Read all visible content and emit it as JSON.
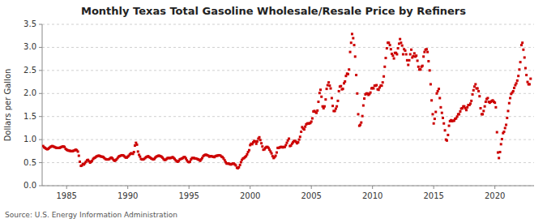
{
  "chart_data": {
    "type": "scatter",
    "title": "Monthly Texas Total Gasoline Wholesale/Resale Price by Refiners",
    "y_label": "Dollars per Gallon",
    "annotation": "Source: U.S. Energy Information Administration",
    "color": "#cc0000",
    "marker": "square",
    "grid": "y",
    "xlim": [
      1983.0,
      2023.2
    ],
    "ylim": [
      0.0,
      3.5
    ],
    "xticks": [
      1985,
      1990,
      1995,
      2000,
      2005,
      2010,
      2015,
      2020
    ],
    "yticks": [
      {
        "value": 0.0,
        "label": "0.0"
      },
      0.5,
      {
        "value": 1.0,
        "label": "1.0"
      },
      1.5,
      {
        "value": 2.0,
        "label": "2.0"
      },
      2.5,
      {
        "value": 3.0,
        "label": "3.0"
      },
      3.5
    ],
    "x": [
      1983.08,
      1983.17,
      1983.25,
      1983.33,
      1983.42,
      1983.5,
      1983.58,
      1983.67,
      1983.75,
      1983.83,
      1983.92,
      1984.0,
      1984.08,
      1984.17,
      1984.25,
      1984.33,
      1984.42,
      1984.5,
      1984.58,
      1984.67,
      1984.75,
      1984.83,
      1984.92,
      1985.0,
      1985.08,
      1985.17,
      1985.25,
      1985.33,
      1985.42,
      1985.5,
      1985.58,
      1985.67,
      1985.75,
      1985.83,
      1985.92,
      1986.0,
      1986.08,
      1986.17,
      1986.25,
      1986.33,
      1986.42,
      1986.5,
      1986.58,
      1986.67,
      1986.75,
      1986.83,
      1986.92,
      1987.0,
      1987.08,
      1987.17,
      1987.25,
      1987.33,
      1987.42,
      1987.5,
      1987.58,
      1987.67,
      1987.75,
      1987.83,
      1987.92,
      1988.0,
      1988.08,
      1988.17,
      1988.25,
      1988.33,
      1988.42,
      1988.5,
      1988.58,
      1988.67,
      1988.75,
      1988.83,
      1988.92,
      1989.0,
      1989.08,
      1989.17,
      1989.25,
      1989.33,
      1989.42,
      1989.5,
      1989.58,
      1989.67,
      1989.75,
      1989.83,
      1989.92,
      1990.0,
      1990.08,
      1990.17,
      1990.25,
      1990.33,
      1990.42,
      1990.5,
      1990.58,
      1990.67,
      1990.75,
      1990.83,
      1990.92,
      1991.0,
      1991.08,
      1991.17,
      1991.25,
      1991.33,
      1991.42,
      1991.5,
      1991.58,
      1991.67,
      1991.75,
      1991.83,
      1991.92,
      1992.0,
      1992.08,
      1992.17,
      1992.25,
      1992.33,
      1992.42,
      1992.5,
      1992.58,
      1992.67,
      1992.75,
      1992.83,
      1992.92,
      1993.0,
      1993.08,
      1993.17,
      1993.25,
      1993.33,
      1993.42,
      1993.5,
      1993.58,
      1993.67,
      1993.75,
      1993.83,
      1993.92,
      1994.0,
      1994.08,
      1994.17,
      1994.25,
      1994.33,
      1994.42,
      1994.5,
      1994.58,
      1994.67,
      1994.75,
      1994.83,
      1994.92,
      1995.0,
      1995.08,
      1995.17,
      1995.25,
      1995.33,
      1995.42,
      1995.5,
      1995.58,
      1995.67,
      1995.75,
      1995.83,
      1995.92,
      1996.0,
      1996.08,
      1996.17,
      1996.25,
      1996.33,
      1996.42,
      1996.5,
      1996.58,
      1996.67,
      1996.75,
      1996.83,
      1996.92,
      1997.0,
      1997.08,
      1997.17,
      1997.25,
      1997.33,
      1997.42,
      1997.5,
      1997.58,
      1997.67,
      1997.75,
      1997.83,
      1997.92,
      1998.0,
      1998.08,
      1998.17,
      1998.25,
      1998.33,
      1998.42,
      1998.5,
      1998.58,
      1998.67,
      1998.75,
      1998.83,
      1998.92,
      1999.0,
      1999.08,
      1999.17,
      1999.25,
      1999.33,
      1999.42,
      1999.5,
      1999.58,
      1999.67,
      1999.75,
      1999.83,
      1999.92,
      2000.0,
      2000.08,
      2000.17,
      2000.25,
      2000.33,
      2000.42,
      2000.5,
      2000.58,
      2000.67,
      2000.75,
      2000.83,
      2000.92,
      2001.0,
      2001.08,
      2001.17,
      2001.25,
      2001.33,
      2001.42,
      2001.5,
      2001.58,
      2001.67,
      2001.75,
      2001.83,
      2001.92,
      2002.0,
      2002.08,
      2002.17,
      2002.25,
      2002.33,
      2002.42,
      2002.5,
      2002.58,
      2002.67,
      2002.75,
      2002.83,
      2002.92,
      2003.0,
      2003.08,
      2003.17,
      2003.25,
      2003.33,
      2003.42,
      2003.5,
      2003.58,
      2003.67,
      2003.75,
      2003.83,
      2003.92,
      2004.0,
      2004.08,
      2004.17,
      2004.25,
      2004.33,
      2004.42,
      2004.5,
      2004.58,
      2004.67,
      2004.75,
      2004.83,
      2004.92,
      2005.0,
      2005.08,
      2005.17,
      2005.25,
      2005.33,
      2005.42,
      2005.5,
      2005.58,
      2005.67,
      2005.75,
      2005.83,
      2005.92,
      2006.0,
      2006.08,
      2006.17,
      2006.25,
      2006.33,
      2006.42,
      2006.5,
      2006.58,
      2006.67,
      2006.75,
      2006.83,
      2006.92,
      2007.0,
      2007.08,
      2007.17,
      2007.25,
      2007.33,
      2007.42,
      2007.5,
      2007.58,
      2007.67,
      2007.75,
      2007.83,
      2007.92,
      2008.0,
      2008.08,
      2008.17,
      2008.25,
      2008.33,
      2008.42,
      2008.5,
      2008.58,
      2008.67,
      2008.75,
      2008.83,
      2008.92,
      2009.0,
      2009.08,
      2009.17,
      2009.25,
      2009.33,
      2009.42,
      2009.5,
      2009.58,
      2009.67,
      2009.75,
      2009.83,
      2009.92,
      2010.0,
      2010.08,
      2010.17,
      2010.25,
      2010.33,
      2010.42,
      2010.5,
      2010.58,
      2010.67,
      2010.75,
      2010.83,
      2010.92,
      2011.0,
      2011.08,
      2011.17,
      2011.25,
      2011.33,
      2011.42,
      2011.5,
      2011.58,
      2011.67,
      2011.75,
      2011.83,
      2011.92,
      2012.0,
      2012.08,
      2012.17,
      2012.25,
      2012.33,
      2012.42,
      2012.5,
      2012.58,
      2012.67,
      2012.75,
      2012.83,
      2012.92,
      2013.0,
      2013.08,
      2013.17,
      2013.25,
      2013.33,
      2013.42,
      2013.5,
      2013.58,
      2013.67,
      2013.75,
      2013.83,
      2013.92,
      2014.0,
      2014.08,
      2014.17,
      2014.25,
      2014.33,
      2014.42,
      2014.5,
      2014.58,
      2014.67,
      2014.75,
      2014.83,
      2014.92,
      2015.0,
      2015.08,
      2015.17,
      2015.25,
      2015.33,
      2015.42,
      2015.5,
      2015.58,
      2015.67,
      2015.75,
      2015.83,
      2015.92,
      2016.0,
      2016.08,
      2016.17,
      2016.25,
      2016.33,
      2016.42,
      2016.5,
      2016.58,
      2016.67,
      2016.75,
      2016.83,
      2016.92,
      2017.0,
      2017.08,
      2017.17,
      2017.25,
      2017.33,
      2017.42,
      2017.5,
      2017.58,
      2017.67,
      2017.75,
      2017.83,
      2017.92,
      2018.0,
      2018.08,
      2018.17,
      2018.25,
      2018.33,
      2018.42,
      2018.5,
      2018.58,
      2018.67,
      2018.75,
      2018.83,
      2018.92,
      2019.0,
      2019.08,
      2019.17,
      2019.25,
      2019.33,
      2019.42,
      2019.5,
      2019.58,
      2019.67,
      2019.75,
      2019.83,
      2019.92,
      2020.0,
      2020.08,
      2020.17,
      2020.25,
      2020.33,
      2020.42,
      2020.5,
      2020.58,
      2020.67,
      2020.75,
      2020.83,
      2020.92,
      2021.0,
      2021.08,
      2021.17,
      2021.25,
      2021.33,
      2021.42,
      2021.5,
      2021.58,
      2021.67,
      2021.75,
      2021.83,
      2021.92,
      2022.0,
      2022.08,
      2022.17,
      2022.25,
      2022.33,
      2022.42,
      2022.5,
      2022.58,
      2022.67,
      2022.75,
      2022.83,
      2022.92
    ],
    "values": [
      0.86,
      0.83,
      0.82,
      0.8,
      0.79,
      0.8,
      0.82,
      0.84,
      0.85,
      0.86,
      0.85,
      0.84,
      0.83,
      0.82,
      0.82,
      0.82,
      0.82,
      0.83,
      0.84,
      0.85,
      0.85,
      0.84,
      0.8,
      0.78,
      0.77,
      0.76,
      0.76,
      0.75,
      0.75,
      0.75,
      0.76,
      0.77,
      0.78,
      0.77,
      0.74,
      0.65,
      0.52,
      0.43,
      0.44,
      0.47,
      0.46,
      0.49,
      0.52,
      0.55,
      0.56,
      0.53,
      0.5,
      0.52,
      0.54,
      0.58,
      0.6,
      0.61,
      0.63,
      0.64,
      0.65,
      0.65,
      0.64,
      0.63,
      0.63,
      0.62,
      0.6,
      0.58,
      0.57,
      0.57,
      0.57,
      0.58,
      0.6,
      0.61,
      0.59,
      0.56,
      0.54,
      0.55,
      0.57,
      0.6,
      0.63,
      0.64,
      0.65,
      0.66,
      0.66,
      0.65,
      0.63,
      0.61,
      0.61,
      0.63,
      0.65,
      0.68,
      0.7,
      0.7,
      0.69,
      0.73,
      0.87,
      0.93,
      0.89,
      0.74,
      0.67,
      0.63,
      0.58,
      0.57,
      0.57,
      0.58,
      0.6,
      0.62,
      0.63,
      0.64,
      0.62,
      0.61,
      0.59,
      0.58,
      0.57,
      0.58,
      0.61,
      0.63,
      0.64,
      0.65,
      0.65,
      0.64,
      0.63,
      0.61,
      0.58,
      0.56,
      0.56,
      0.58,
      0.6,
      0.6,
      0.6,
      0.6,
      0.61,
      0.62,
      0.6,
      0.58,
      0.55,
      0.53,
      0.52,
      0.54,
      0.57,
      0.58,
      0.59,
      0.6,
      0.62,
      0.62,
      0.59,
      0.55,
      0.52,
      0.51,
      0.52,
      0.57,
      0.6,
      0.6,
      0.6,
      0.59,
      0.59,
      0.58,
      0.57,
      0.56,
      0.54,
      0.57,
      0.6,
      0.64,
      0.66,
      0.67,
      0.67,
      0.66,
      0.65,
      0.63,
      0.64,
      0.64,
      0.63,
      0.63,
      0.62,
      0.64,
      0.65,
      0.65,
      0.66,
      0.66,
      0.65,
      0.63,
      0.62,
      0.59,
      0.55,
      0.51,
      0.48,
      0.48,
      0.48,
      0.47,
      0.46,
      0.47,
      0.48,
      0.48,
      0.46,
      0.44,
      0.39,
      0.38,
      0.4,
      0.45,
      0.51,
      0.56,
      0.59,
      0.6,
      0.62,
      0.64,
      0.68,
      0.73,
      0.77,
      0.88,
      0.91,
      0.9,
      0.94,
      0.97,
      0.96,
      0.91,
      0.96,
      1.02,
      1.05,
      0.99,
      0.92,
      0.85,
      0.78,
      0.79,
      0.82,
      0.84,
      0.84,
      0.82,
      0.78,
      0.74,
      0.7,
      0.64,
      0.6,
      0.62,
      0.65,
      0.72,
      0.82,
      0.82,
      0.83,
      0.84,
      0.84,
      0.83,
      0.84,
      0.84,
      0.88,
      0.93,
      0.98,
      1.02,
      0.86,
      0.87,
      0.91,
      0.94,
      0.97,
      0.97,
      0.95,
      0.92,
      0.94,
      1.0,
      1.06,
      1.17,
      1.27,
      1.24,
      1.22,
      1.28,
      1.33,
      1.35,
      1.35,
      1.35,
      1.36,
      1.39,
      1.46,
      1.61,
      1.62,
      1.6,
      1.58,
      1.63,
      1.82,
      2.01,
      2.08,
      1.93,
      1.72,
      1.68,
      1.72,
      1.87,
      2.1,
      2.18,
      2.24,
      2.17,
      2.11,
      1.9,
      1.73,
      1.62,
      1.62,
      1.67,
      1.72,
      1.84,
      2.05,
      2.15,
      2.16,
      2.09,
      2.1,
      2.22,
      2.26,
      2.38,
      2.43,
      2.42,
      2.52,
      2.9,
      3.1,
      3.29,
      3.2,
      3.05,
      2.8,
      2.4,
      2.0,
      1.55,
      1.3,
      1.32,
      1.37,
      1.51,
      1.74,
      1.89,
      1.98,
      2.0,
      2.0,
      1.97,
      1.99,
      2.02,
      2.11,
      2.12,
      2.11,
      2.17,
      2.17,
      2.18,
      2.09,
      2.08,
      2.13,
      2.17,
      2.17,
      2.24,
      2.37,
      2.58,
      2.77,
      2.98,
      3.1,
      3.1,
      3.05,
      2.96,
      2.86,
      2.82,
      2.76,
      2.88,
      2.88,
      2.85,
      2.98,
      3.08,
      3.18,
      3.1,
      3.04,
      2.85,
      2.96,
      2.93,
      2.85,
      2.72,
      2.62,
      2.72,
      2.85,
      2.95,
      2.78,
      2.81,
      2.87,
      2.8,
      2.82,
      2.71,
      2.58,
      2.52,
      2.52,
      2.58,
      2.6,
      2.8,
      2.9,
      2.95,
      2.96,
      2.9,
      2.7,
      2.5,
      2.2,
      1.85,
      1.55,
      1.35,
      1.45,
      1.6,
      2.0,
      2.05,
      2.1,
      1.9,
      1.7,
      1.58,
      1.47,
      1.35,
      1.2,
      1.0,
      0.98,
      1.1,
      1.3,
      1.4,
      1.42,
      1.4,
      1.41,
      1.41,
      1.45,
      1.46,
      1.5,
      1.55,
      1.55,
      1.61,
      1.67,
      1.68,
      1.72,
      1.72,
      1.68,
      1.64,
      1.7,
      1.75,
      1.75,
      1.78,
      1.84,
      1.98,
      2.07,
      2.15,
      2.2,
      2.11,
      2.11,
      2.05,
      1.94,
      1.68,
      1.55,
      1.55,
      1.62,
      1.72,
      1.82,
      1.88,
      1.9,
      1.82,
      1.8,
      1.82,
      1.84,
      1.85,
      1.82,
      1.8,
      1.7,
      1.16,
      0.72,
      0.6,
      0.73,
      0.9,
      1.01,
      1.14,
      1.17,
      1.25,
      1.32,
      1.47,
      1.62,
      1.79,
      1.9,
      1.99,
      2.02,
      2.05,
      2.12,
      2.18,
      2.22,
      2.28,
      2.38,
      2.52,
      2.68,
      3.05,
      3.1,
      2.95,
      2.78,
      2.55,
      2.4,
      2.25,
      2.2,
      2.2,
      2.32
    ]
  }
}
